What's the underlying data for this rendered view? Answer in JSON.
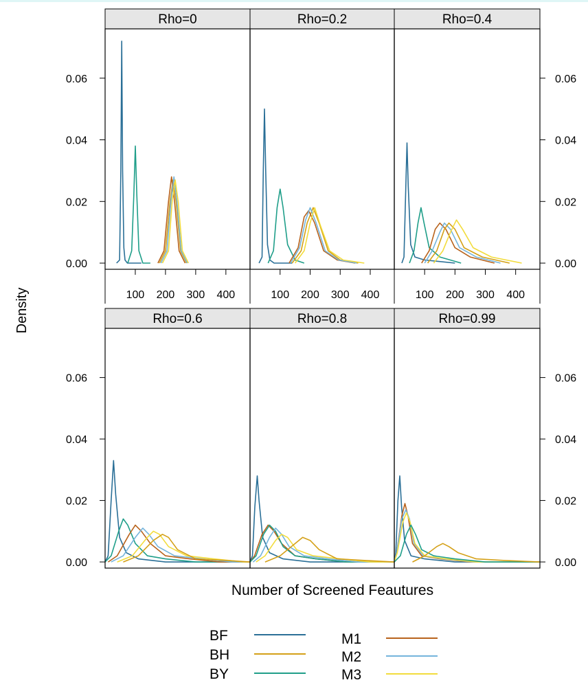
{
  "chart_data": {
    "type": "line",
    "ylabel": "Density",
    "xlabel": "Number of Screened Feautures",
    "y_ticks": [
      0.0,
      0.02,
      0.04,
      0.06
    ],
    "y_tick_labels": [
      "0.00",
      "0.02",
      "0.04",
      "0.06"
    ],
    "ylim": [
      -0.002,
      0.076
    ],
    "xlim": [
      0,
      480
    ],
    "x_ticks": [
      100,
      200,
      300,
      400
    ],
    "x_tick_labels": [
      "100",
      "200",
      "300",
      "400"
    ],
    "grid": false,
    "legend_position": "bottom",
    "series_styles": [
      {
        "name": "BF",
        "color": "#2a6f97"
      },
      {
        "name": "BH",
        "color": "#d4a017"
      },
      {
        "name": "BY",
        "color": "#1f9e89"
      },
      {
        "name": "M1",
        "color": "#b8621b"
      },
      {
        "name": "M2",
        "color": "#74b4dc"
      },
      {
        "name": "M3",
        "color": "#f2dc3c"
      }
    ],
    "panels": [
      {
        "strip": "Rho=0",
        "curves": [
          {
            "series": "BF",
            "x": [
              38,
              48,
              52,
              55,
              58,
              62,
              66,
              74,
              120
            ],
            "y": [
              0,
              0.001,
              0.03,
              0.072,
              0.03,
              0.005,
              0.001,
              0,
              0
            ]
          },
          {
            "series": "BY",
            "x": [
              75,
              88,
              95,
              100,
              105,
              112,
              125,
              150
            ],
            "y": [
              0,
              0.004,
              0.022,
              0.038,
              0.022,
              0.004,
              0,
              0
            ]
          },
          {
            "series": "BH",
            "x": [
              180,
              200,
              215,
              225,
              235,
              250,
              270
            ],
            "y": [
              0,
              0.004,
              0.02,
              0.027,
              0.02,
              0.004,
              0
            ]
          },
          {
            "series": "M1",
            "x": [
              175,
              195,
              210,
              220,
              230,
              245,
              265
            ],
            "y": [
              0,
              0.004,
              0.02,
              0.028,
              0.02,
              0.004,
              0
            ]
          },
          {
            "series": "M2",
            "x": [
              185,
              205,
              218,
              228,
              238,
              252,
              272
            ],
            "y": [
              0,
              0.004,
              0.02,
              0.028,
              0.02,
              0.004,
              0
            ]
          },
          {
            "series": "M3",
            "x": [
              190,
              210,
              222,
              232,
              242,
              256,
              276
            ],
            "y": [
              0,
              0.004,
              0.02,
              0.027,
              0.02,
              0.004,
              0
            ]
          }
        ]
      },
      {
        "strip": "Rho=0.2",
        "curves": [
          {
            "series": "BF",
            "x": [
              30,
              40,
              44,
              48,
              52,
              58,
              66,
              80,
              140
            ],
            "y": [
              0,
              0.002,
              0.03,
              0.05,
              0.03,
              0.006,
              0.001,
              0,
              0
            ]
          },
          {
            "series": "BY",
            "x": [
              60,
              78,
              90,
              100,
              110,
              125,
              150,
              180
            ],
            "y": [
              0,
              0.004,
              0.018,
              0.024,
              0.018,
              0.006,
              0.001,
              0
            ]
          },
          {
            "series": "BH",
            "x": [
              140,
              170,
              190,
              210,
              230,
              260,
              300,
              360
            ],
            "y": [
              0,
              0.004,
              0.013,
              0.018,
              0.013,
              0.004,
              0.001,
              0
            ]
          },
          {
            "series": "M1",
            "x": [
              130,
              160,
              180,
              195,
              215,
              245,
              290,
              350
            ],
            "y": [
              0,
              0.005,
              0.015,
              0.017,
              0.013,
              0.004,
              0.001,
              0
            ]
          },
          {
            "series": "M2",
            "x": [
              135,
              165,
              185,
              200,
              220,
              250,
              295,
              355
            ],
            "y": [
              0,
              0.005,
              0.014,
              0.018,
              0.013,
              0.004,
              0.001,
              0
            ]
          },
          {
            "series": "M3",
            "x": [
              150,
              180,
              200,
              215,
              235,
              265,
              310,
              380
            ],
            "y": [
              0,
              0.004,
              0.013,
              0.018,
              0.012,
              0.004,
              0.001,
              0
            ]
          }
        ]
      },
      {
        "strip": "Rho=0.4",
        "curves": [
          {
            "series": "BF",
            "x": [
              25,
              32,
              38,
              42,
              46,
              54,
              68,
              100,
              200
            ],
            "y": [
              0,
              0.002,
              0.025,
              0.039,
              0.025,
              0.006,
              0.002,
              0.001,
              0
            ]
          },
          {
            "series": "BY",
            "x": [
              50,
              65,
              78,
              88,
              98,
              115,
              150,
              220
            ],
            "y": [
              0,
              0.004,
              0.013,
              0.018,
              0.013,
              0.005,
              0.002,
              0
            ]
          },
          {
            "series": "M1",
            "x": [
              90,
              115,
              135,
              150,
              170,
              200,
              250,
              330
            ],
            "y": [
              0,
              0.004,
              0.011,
              0.013,
              0.011,
              0.005,
              0.002,
              0
            ]
          },
          {
            "series": "M2",
            "x": [
              100,
              125,
              150,
              165,
              185,
              215,
              270,
              350
            ],
            "y": [
              0,
              0.004,
              0.01,
              0.013,
              0.011,
              0.005,
              0.002,
              0
            ]
          },
          {
            "series": "BH",
            "x": [
              110,
              140,
              165,
              180,
              200,
              230,
              290,
              380
            ],
            "y": [
              0,
              0.004,
              0.011,
              0.013,
              0.011,
              0.005,
              0.002,
              0
            ]
          },
          {
            "series": "M3",
            "x": [
              130,
              160,
              185,
              205,
              225,
              260,
              320,
              420
            ],
            "y": [
              0,
              0.004,
              0.01,
              0.014,
              0.011,
              0.005,
              0.002,
              0
            ]
          }
        ]
      },
      {
        "strip": "Rho=0.6",
        "curves": [
          {
            "series": "BF",
            "x": [
              0,
              10,
              20,
              28,
              35,
              48,
              70,
              110,
              200,
              480
            ],
            "y": [
              0,
              0.002,
              0.02,
              0.033,
              0.022,
              0.008,
              0.003,
              0.001,
              0,
              0
            ]
          },
          {
            "series": "BY",
            "x": [
              0,
              20,
              45,
              60,
              75,
              100,
              140,
              200,
              300,
              480
            ],
            "y": [
              0,
              0.002,
              0.01,
              0.014,
              0.012,
              0.006,
              0.002,
              0.001,
              0,
              0
            ]
          },
          {
            "series": "M1",
            "x": [
              10,
              40,
              80,
              100,
              120,
              150,
              200,
              280,
              380,
              480
            ],
            "y": [
              0,
              0.002,
              0.009,
              0.012,
              0.01,
              0.006,
              0.002,
              0.001,
              0,
              0
            ]
          },
          {
            "series": "M2",
            "x": [
              20,
              60,
              100,
              125,
              145,
              175,
              230,
              320,
              420,
              480
            ],
            "y": [
              0,
              0.002,
              0.008,
              0.011,
              0.009,
              0.005,
              0.002,
              0.001,
              0,
              0
            ]
          },
          {
            "series": "M3",
            "x": [
              40,
              90,
              140,
              160,
              180,
              210,
              270,
              360,
              460,
              480
            ],
            "y": [
              0,
              0.002,
              0.008,
              0.01,
              0.009,
              0.005,
              0.002,
              0.001,
              0,
              0
            ]
          },
          {
            "series": "BH",
            "x": [
              60,
              110,
              160,
              190,
              210,
              240,
              300,
              400,
              480
            ],
            "y": [
              0,
              0.002,
              0.007,
              0.009,
              0.008,
              0.004,
              0.001,
              0.0005,
              0
            ]
          }
        ]
      },
      {
        "strip": "Rho=0.8",
        "curves": [
          {
            "series": "BF",
            "x": [
              0,
              8,
              16,
              24,
              30,
              42,
              65,
              110,
              200,
              480
            ],
            "y": [
              0,
              0.002,
              0.018,
              0.028,
              0.02,
              0.008,
              0.003,
              0.001,
              0,
              0
            ]
          },
          {
            "series": "M1",
            "x": [
              0,
              15,
              40,
              60,
              80,
              105,
              150,
              220,
              320,
              480
            ],
            "y": [
              0,
              0.002,
              0.009,
              0.012,
              0.01,
              0.006,
              0.002,
              0.001,
              0,
              0
            ]
          },
          {
            "series": "BY",
            "x": [
              0,
              20,
              45,
              65,
              85,
              110,
              150,
              220,
              320,
              480
            ],
            "y": [
              0,
              0.002,
              0.009,
              0.012,
              0.01,
              0.005,
              0.002,
              0.001,
              0,
              0
            ]
          },
          {
            "series": "M2",
            "x": [
              10,
              35,
              65,
              85,
              105,
              130,
              180,
              260,
              360,
              480
            ],
            "y": [
              0,
              0.002,
              0.008,
              0.011,
              0.009,
              0.005,
              0.002,
              0.001,
              0,
              0
            ]
          },
          {
            "series": "M3",
            "x": [
              20,
              50,
              85,
              105,
              125,
              155,
              210,
              300,
              400,
              480
            ],
            "y": [
              0,
              0.002,
              0.007,
              0.009,
              0.008,
              0.004,
              0.002,
              0.001,
              0,
              0
            ]
          },
          {
            "series": "BH",
            "x": [
              50,
              100,
              150,
              175,
              200,
              230,
              290,
              380,
              480
            ],
            "y": [
              0,
              0.002,
              0.006,
              0.008,
              0.007,
              0.004,
              0.001,
              0.0005,
              0
            ]
          }
        ]
      },
      {
        "strip": "Rho=0.99",
        "curves": [
          {
            "series": "BF",
            "x": [
              0,
              5,
              12,
              18,
              24,
              34,
              55,
              100,
              200,
              480
            ],
            "y": [
              0,
              0.003,
              0.02,
              0.028,
              0.018,
              0.007,
              0.002,
              0.001,
              0,
              0
            ]
          },
          {
            "series": "M1",
            "x": [
              0,
              8,
              25,
              35,
              45,
              60,
              90,
              150,
              250,
              480
            ],
            "y": [
              0,
              0.003,
              0.015,
              0.019,
              0.015,
              0.006,
              0.002,
              0.001,
              0,
              0
            ]
          },
          {
            "series": "M2",
            "x": [
              0,
              8,
              25,
              38,
              50,
              65,
              95,
              160,
              260,
              480
            ],
            "y": [
              0,
              0.003,
              0.014,
              0.017,
              0.014,
              0.006,
              0.002,
              0.001,
              0,
              0
            ]
          },
          {
            "series": "M3",
            "x": [
              0,
              10,
              28,
              40,
              52,
              68,
              100,
              170,
              270,
              480
            ],
            "y": [
              0,
              0.003,
              0.013,
              0.016,
              0.013,
              0.006,
              0.002,
              0.001,
              0,
              0
            ]
          },
          {
            "series": "BY",
            "x": [
              0,
              20,
              40,
              55,
              70,
              90,
              130,
              200,
              300,
              480
            ],
            "y": [
              0,
              0.002,
              0.009,
              0.012,
              0.009,
              0.004,
              0.002,
              0.001,
              0,
              0
            ]
          },
          {
            "series": "BH",
            "x": [
              60,
              100,
              140,
              160,
              180,
              210,
              270,
              360,
              480
            ],
            "y": [
              0,
              0.002,
              0.005,
              0.006,
              0.005,
              0.003,
              0.001,
              0.0005,
              0
            ]
          }
        ]
      }
    ]
  }
}
